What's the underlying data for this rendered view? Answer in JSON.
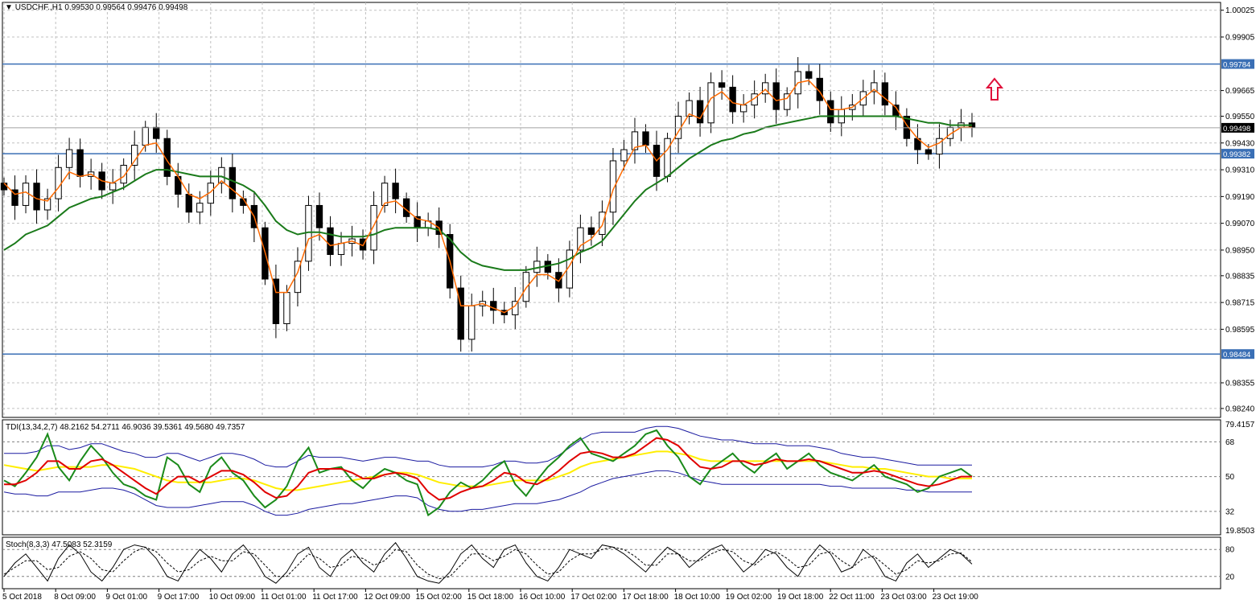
{
  "header": {
    "symbol_line": "USDCHF.,H1  0.99530 0.99564 0.99476 0.99498"
  },
  "colors": {
    "grid": "#c0c0c0",
    "border": "#000000",
    "hline": "#3a6fb5",
    "ema_fast": "#ff6a00",
    "ema_slow": "#1a7a1a",
    "candle": "#000000",
    "arrow": "#e0103a",
    "tdi_rsi": "#1a8a1a",
    "tdi_signal": "#e00000",
    "tdi_base": "#ffee00",
    "tdi_bands": "#1a1aa0",
    "price_tag": "#000000"
  },
  "main_chart": {
    "price_axis_labels": [
      "1.00025",
      "0.99905",
      "0.99665",
      "0.99550",
      "0.99430",
      "0.99310",
      "0.99190",
      "0.99070",
      "0.98950",
      "0.98835",
      "0.98715",
      "0.98595",
      "0.98355",
      "0.98240"
    ],
    "current_price_tag": "0.99498",
    "hlines": [
      {
        "label": "0.99784",
        "value": 0.99784
      },
      {
        "label": "0.99382",
        "value": 0.99382
      },
      {
        "label": "0.98484",
        "value": 0.98484
      }
    ],
    "arrow_icon": "up-arrow-icon"
  },
  "tdi_panel": {
    "title": "TDI(13,34,2,7) 48.2162 54.2711 46.9036 39.5361 49.5680 49.7357",
    "axis_labels": [
      "79.4157",
      "68",
      "50",
      "32",
      "19.8503"
    ]
  },
  "stoch_panel": {
    "title": "Stoch(8,3,3) 47.5083 52.3159",
    "axis_labels": [
      "80",
      "20"
    ]
  },
  "time_axis": {
    "labels": [
      "5 Oct 2018",
      "8 Oct 09:00",
      "9 Oct 01:00",
      "9 Oct 17:00",
      "10 Oct 09:00",
      "11 Oct 01:00",
      "11 Oct 17:00",
      "12 Oct 09:00",
      "15 Oct 02:00",
      "15 Oct 18:00",
      "16 Oct 10:00",
      "17 Oct 02:00",
      "17 Oct 18:00",
      "18 Oct 10:00",
      "19 Oct 02:00",
      "19 Oct 18:00",
      "22 Oct 11:00",
      "23 Oct 03:00",
      "23 Oct 19:00"
    ]
  },
  "chart_data": {
    "type": "line",
    "title": "USDCHF.,H1",
    "ohlc_last": {
      "open": 0.9953,
      "high": 0.99564,
      "low": 0.99476,
      "close": 0.99498
    },
    "x_anchor_times": [
      "5 Oct 2018",
      "8 Oct 09:00",
      "9 Oct 01:00",
      "9 Oct 17:00",
      "10 Oct 09:00",
      "11 Oct 01:00",
      "11 Oct 17:00",
      "12 Oct 09:00",
      "15 Oct 02:00",
      "15 Oct 18:00",
      "16 Oct 10:00",
      "17 Oct 02:00",
      "17 Oct 18:00",
      "18 Oct 10:00",
      "19 Oct 02:00",
      "19 Oct 18:00",
      "22 Oct 11:00",
      "23 Oct 03:00",
      "23 Oct 19:00"
    ],
    "ylim": [
      0.982,
      1.0006
    ],
    "series": [
      {
        "name": "close",
        "values": [
          0.9922,
          0.9915,
          0.9925,
          0.9913,
          0.9918,
          0.9932,
          0.994,
          0.9928,
          0.993,
          0.9922,
          0.9925,
          0.9933,
          0.9942,
          0.995,
          0.9945,
          0.9928,
          0.992,
          0.9912,
          0.9916,
          0.9925,
          0.9932,
          0.9918,
          0.9915,
          0.9905,
          0.9882,
          0.9862,
          0.9876,
          0.989,
          0.9915,
          0.9905,
          0.9893,
          0.9898,
          0.99,
          0.9895,
          0.9915,
          0.9925,
          0.9918,
          0.991,
          0.9905,
          0.9908,
          0.9902,
          0.9878,
          0.9855,
          0.987,
          0.9872,
          0.9868,
          0.9866,
          0.9872,
          0.9885,
          0.989,
          0.9885,
          0.9878,
          0.9895,
          0.9905,
          0.9902,
          0.9912,
          0.9935,
          0.994,
          0.9948,
          0.9942,
          0.9928,
          0.9945,
          0.9955,
          0.9962,
          0.9952,
          0.997,
          0.9968,
          0.9957,
          0.996,
          0.9965,
          0.997,
          0.9958,
          0.9965,
          0.9975,
          0.9972,
          0.9962,
          0.9952,
          0.9958,
          0.996,
          0.9966,
          0.997,
          0.996,
          0.9955,
          0.9945,
          0.994,
          0.9938,
          0.9945,
          0.995,
          0.9952,
          0.995
        ]
      },
      {
        "name": "ema_fast",
        "values": [
          0.9925,
          0.992,
          0.9921,
          0.9918,
          0.9917,
          0.9923,
          0.993,
          0.9928,
          0.9929,
          0.9926,
          0.9925,
          0.9928,
          0.9935,
          0.9942,
          0.9943,
          0.9935,
          0.9928,
          0.992,
          0.9918,
          0.9921,
          0.9926,
          0.9922,
          0.9918,
          0.991,
          0.9894,
          0.9876,
          0.9876,
          0.9885,
          0.99,
          0.9902,
          0.9897,
          0.9898,
          0.9899,
          0.9897,
          0.9906,
          0.9916,
          0.9917,
          0.9913,
          0.9909,
          0.9908,
          0.9905,
          0.989,
          0.987,
          0.987,
          0.9871,
          0.9869,
          0.9867,
          0.987,
          0.9878,
          0.9884,
          0.9884,
          0.9881,
          0.9888,
          0.9897,
          0.99,
          0.9906,
          0.9922,
          0.9932,
          0.9941,
          0.9942,
          0.9935,
          0.994,
          0.9948,
          0.9956,
          0.9954,
          0.9963,
          0.9966,
          0.9961,
          0.996,
          0.9963,
          0.9967,
          0.9962,
          0.9963,
          0.997,
          0.9971,
          0.9966,
          0.9958,
          0.9958,
          0.9959,
          0.9963,
          0.9967,
          0.9963,
          0.9959,
          0.9951,
          0.9945,
          0.9941,
          0.9943,
          0.9947,
          0.995,
          0.995
        ]
      },
      {
        "name": "ema_slow",
        "values": [
          0.9895,
          0.9898,
          0.9902,
          0.9904,
          0.9906,
          0.991,
          0.9914,
          0.9916,
          0.9918,
          0.9919,
          0.9921,
          0.9923,
          0.9926,
          0.9929,
          0.9931,
          0.9931,
          0.993,
          0.9929,
          0.9928,
          0.9928,
          0.9928,
          0.9926,
          0.9924,
          0.9921,
          0.9915,
          0.9908,
          0.9904,
          0.9902,
          0.9903,
          0.9903,
          0.9902,
          0.9901,
          0.9901,
          0.9901,
          0.9902,
          0.9904,
          0.9905,
          0.9905,
          0.9905,
          0.9905,
          0.9904,
          0.99,
          0.9894,
          0.989,
          0.9888,
          0.9887,
          0.9886,
          0.9886,
          0.9886,
          0.9887,
          0.9888,
          0.9889,
          0.9891,
          0.9894,
          0.9896,
          0.9899,
          0.9905,
          0.9911,
          0.9917,
          0.9922,
          0.9925,
          0.9928,
          0.9932,
          0.9936,
          0.9939,
          0.9942,
          0.9944,
          0.9945,
          0.9947,
          0.9948,
          0.995,
          0.9951,
          0.9952,
          0.9953,
          0.9954,
          0.9955,
          0.9955,
          0.9955,
          0.9955,
          0.9955,
          0.9955,
          0.9955,
          0.9955,
          0.9954,
          0.9953,
          0.9952,
          0.9952,
          0.9951,
          0.9951,
          0.9951
        ]
      }
    ],
    "tdi": {
      "ylim": [
        19.8503,
        79.4157
      ],
      "rsi": [
        48,
        45,
        52,
        60,
        72,
        55,
        48,
        58,
        66,
        60,
        52,
        46,
        44,
        40,
        38,
        60,
        56,
        46,
        42,
        55,
        60,
        52,
        48,
        40,
        34,
        38,
        45,
        58,
        65,
        52,
        54,
        55,
        48,
        44,
        50,
        54,
        52,
        48,
        46,
        30,
        34,
        42,
        47,
        44,
        48,
        54,
        58,
        46,
        40,
        48,
        55,
        60,
        66,
        70,
        62,
        60,
        58,
        62,
        66,
        72,
        74,
        66,
        60,
        50,
        46,
        54,
        58,
        62,
        56,
        52,
        58,
        62,
        54,
        58,
        62,
        56,
        52,
        50,
        48,
        52,
        56,
        50,
        48,
        46,
        42,
        44,
        50,
        52,
        54,
        50
      ],
      "signal": [
        46,
        46,
        48,
        52,
        58,
        58,
        54,
        54,
        58,
        59,
        56,
        52,
        48,
        44,
        41,
        46,
        50,
        50,
        47,
        50,
        53,
        53,
        51,
        47,
        42,
        39,
        40,
        45,
        52,
        54,
        54,
        54,
        52,
        49,
        49,
        51,
        52,
        51,
        49,
        42,
        38,
        39,
        42,
        44,
        45,
        48,
        52,
        51,
        47,
        46,
        49,
        53,
        58,
        62,
        63,
        62,
        60,
        60,
        62,
        66,
        70,
        69,
        66,
        60,
        55,
        54,
        55,
        58,
        58,
        56,
        57,
        59,
        58,
        58,
        59,
        58,
        56,
        54,
        52,
        52,
        53,
        52,
        50,
        48,
        46,
        45,
        46,
        48,
        50,
        50
      ],
      "base": [
        56,
        55,
        54,
        53,
        54,
        55,
        55,
        55,
        55,
        56,
        56,
        55,
        54,
        52,
        50,
        48,
        47,
        47,
        47,
        47,
        48,
        49,
        49,
        48,
        46,
        44,
        43,
        43,
        44,
        45,
        46,
        47,
        48,
        49,
        50,
        51,
        52,
        52,
        51,
        49,
        47,
        46,
        45,
        45,
        45,
        46,
        47,
        48,
        48,
        48,
        48,
        50,
        52,
        55,
        57,
        58,
        59,
        60,
        61,
        62,
        63,
        63,
        62,
        61,
        59,
        58,
        58,
        58,
        58,
        58,
        58,
        58,
        58,
        58,
        58,
        58,
        57,
        56,
        55,
        55,
        54,
        54,
        53,
        52,
        51,
        50,
        50,
        49,
        49,
        49
      ],
      "upper_band": [
        62,
        62,
        62,
        63,
        66,
        66,
        64,
        65,
        67,
        67,
        65,
        63,
        62,
        60,
        60,
        62,
        62,
        60,
        58,
        60,
        62,
        62,
        61,
        59,
        56,
        55,
        55,
        58,
        61,
        60,
        60,
        60,
        59,
        58,
        59,
        60,
        60,
        59,
        58,
        58,
        56,
        55,
        55,
        55,
        55,
        56,
        58,
        58,
        57,
        57,
        58,
        61,
        65,
        69,
        72,
        73,
        73,
        73,
        73,
        75,
        76,
        76,
        75,
        73,
        71,
        70,
        69,
        69,
        68,
        67,
        67,
        67,
        66,
        66,
        66,
        65,
        64,
        62,
        61,
        60,
        60,
        59,
        58,
        57,
        56,
        56,
        56,
        56,
        56,
        56
      ],
      "lower_band": [
        42,
        41,
        41,
        40,
        40,
        42,
        42,
        42,
        43,
        44,
        44,
        43,
        41,
        38,
        35,
        34,
        34,
        34,
        35,
        36,
        37,
        37,
        37,
        35,
        32,
        30,
        30,
        31,
        33,
        34,
        35,
        36,
        36,
        37,
        38,
        39,
        40,
        40,
        39,
        35,
        33,
        32,
        32,
        33,
        33,
        34,
        35,
        36,
        36,
        36,
        37,
        38,
        40,
        42,
        45,
        47,
        49,
        50,
        51,
        52,
        53,
        53,
        52,
        50,
        48,
        47,
        46,
        46,
        46,
        46,
        46,
        46,
        46,
        46,
        46,
        46,
        45,
        45,
        44,
        44,
        44,
        44,
        44,
        43,
        43,
        42,
        42,
        42,
        42,
        42
      ]
    },
    "stoch": {
      "ylim": [
        0,
        100
      ],
      "main": [
        20,
        50,
        70,
        40,
        10,
        60,
        90,
        70,
        30,
        10,
        40,
        80,
        90,
        85,
        60,
        20,
        10,
        50,
        80,
        60,
        30,
        70,
        90,
        60,
        20,
        5,
        30,
        70,
        85,
        40,
        20,
        60,
        80,
        50,
        30,
        70,
        95,
        60,
        20,
        10,
        5,
        30,
        70,
        90,
        60,
        40,
        80,
        90,
        50,
        20,
        10,
        40,
        80,
        70,
        60,
        90,
        85,
        70,
        50,
        30,
        60,
        85,
        70,
        40,
        60,
        80,
        90,
        60,
        30,
        50,
        80,
        70,
        40,
        20,
        60,
        90,
        70,
        30,
        40,
        80,
        60,
        20,
        10,
        50,
        70,
        40,
        60,
        80,
        70,
        47.5
      ],
      "signal": [
        25,
        40,
        55,
        55,
        35,
        40,
        65,
        75,
        60,
        35,
        30,
        55,
        75,
        85,
        75,
        50,
        30,
        35,
        55,
        65,
        55,
        55,
        75,
        70,
        45,
        20,
        20,
        45,
        70,
        60,
        40,
        45,
        65,
        60,
        45,
        55,
        80,
        75,
        45,
        25,
        15,
        20,
        45,
        70,
        70,
        55,
        65,
        80,
        70,
        45,
        25,
        30,
        55,
        70,
        70,
        80,
        85,
        80,
        65,
        45,
        45,
        70,
        70,
        55,
        55,
        70,
        80,
        75,
        55,
        45,
        65,
        75,
        60,
        40,
        45,
        70,
        75,
        55,
        40,
        60,
        65,
        45,
        25,
        35,
        55,
        50,
        55,
        70,
        72,
        52.3
      ]
    }
  }
}
